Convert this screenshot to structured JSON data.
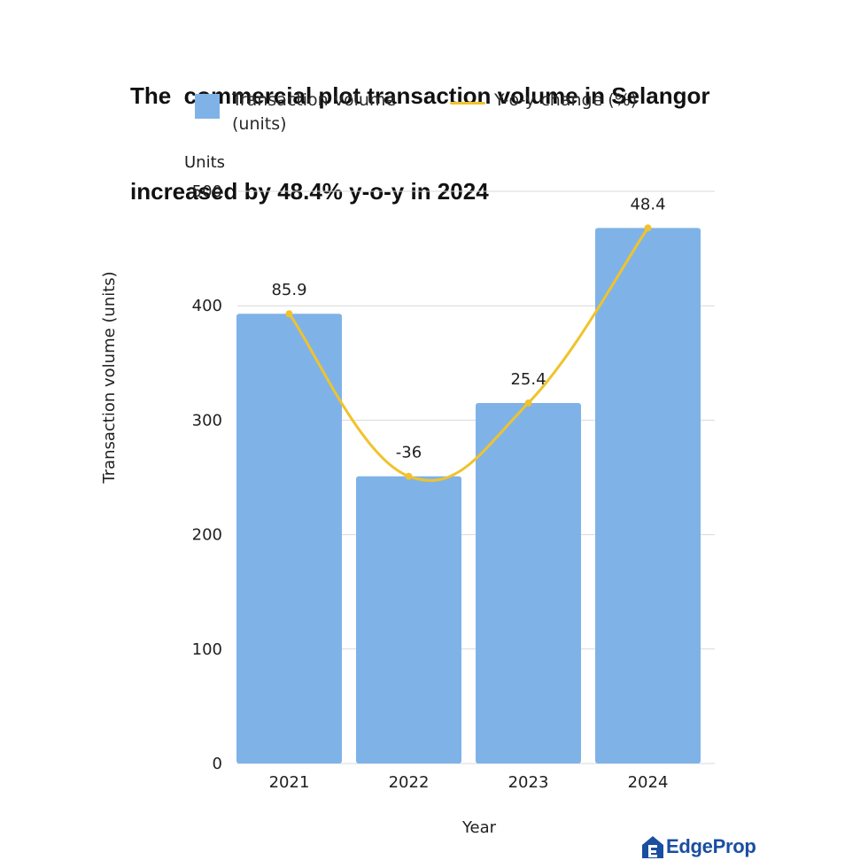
{
  "title": {
    "line1": "The  commercial plot transaction volume in Selangor",
    "line2": "increased by 48.4% y-o-y in 2024"
  },
  "legend": {
    "bar_label": "Transaction volume (units)",
    "line_label": "Y-o-y change (%)"
  },
  "brand": {
    "name": "EdgeProp",
    "color": "#1a4ea0"
  },
  "colors": {
    "bar": "#7fb3e8",
    "line": "#f0c32c",
    "grid": "#d9d9d9"
  },
  "chart_data": {
    "type": "bar",
    "categories": [
      "2021",
      "2022",
      "2023",
      "2024"
    ],
    "series": [
      {
        "name": "Transaction volume (units)",
        "type": "bar",
        "values": [
          393,
          251,
          315,
          468
        ]
      },
      {
        "name": "Y-o-y change (%)",
        "type": "line",
        "values": [
          85.9,
          -36,
          25.4,
          48.4
        ],
        "labels": [
          "85.9",
          "-36",
          "25.4",
          "48.4"
        ]
      }
    ],
    "xlabel": "Year",
    "ylabel": "Transaction volume (units)",
    "yunit": "Units",
    "ylim": [
      0,
      500
    ],
    "yticks": [
      "0",
      "100",
      "200",
      "300",
      "400",
      "500"
    ],
    "grid": true,
    "legend_position": "top"
  }
}
